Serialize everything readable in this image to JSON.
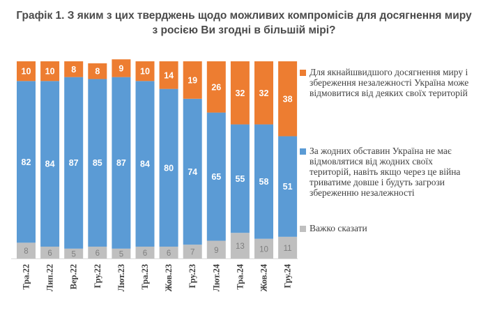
{
  "title": "Графік 1. З яким з цих тверджень щодо можливих компромісів для досягнення миру з росією Ви згодні в більшій мірі?",
  "colors": {
    "orange": "#ED7D31",
    "blue": "#5B9BD5",
    "gray": "#BFBFBF"
  },
  "chart_data": {
    "type": "bar",
    "stacked": true,
    "categories": [
      "Тра.22",
      "Лип.22",
      "Вер.22",
      "Гру.22",
      "Лют.23",
      "Тра.23",
      "Жов.23",
      "Гру.23",
      "Лют.24",
      "Тра.24",
      "Жов.24",
      "Гру.24"
    ],
    "series": [
      {
        "name": "Важко сказати",
        "color": "#BFBFBF",
        "values": [
          8,
          6,
          5,
          6,
          5,
          6,
          6,
          7,
          9,
          13,
          10,
          11
        ]
      },
      {
        "name": "За жодних обставин Україна не має відмовлятися від жодних своїх територій, навіть якщо через це війна триватиме довше і будуть загрози збереженню незалежності",
        "color": "#5B9BD5",
        "values": [
          82,
          84,
          87,
          85,
          87,
          84,
          80,
          74,
          65,
          55,
          58,
          51
        ]
      },
      {
        "name": "Для якнайшвидшого досягнення миру і збереження незалежності Україна може відмовитися від деяких своїх територій",
        "color": "#ED7D31",
        "values": [
          10,
          10,
          8,
          8,
          9,
          10,
          14,
          19,
          26,
          32,
          32,
          38
        ]
      }
    ],
    "ylim": [
      0,
      100
    ],
    "legend_position": "right",
    "grid": false
  },
  "legend": [
    {
      "label": "Для якнайшвидшого досягнення миру і збереження незалежності Україна може відмовитися від деяких своїх територій",
      "color": "#ED7D31"
    },
    {
      "label": "За жодних обставин Україна не має відмовлятися від жодних своїх територій, навіть якщо через це війна триватиме довше і будуть загрози збереженню незалежності",
      "color": "#5B9BD5"
    },
    {
      "label": "Важко сказати",
      "color": "#BFBFBF"
    }
  ]
}
